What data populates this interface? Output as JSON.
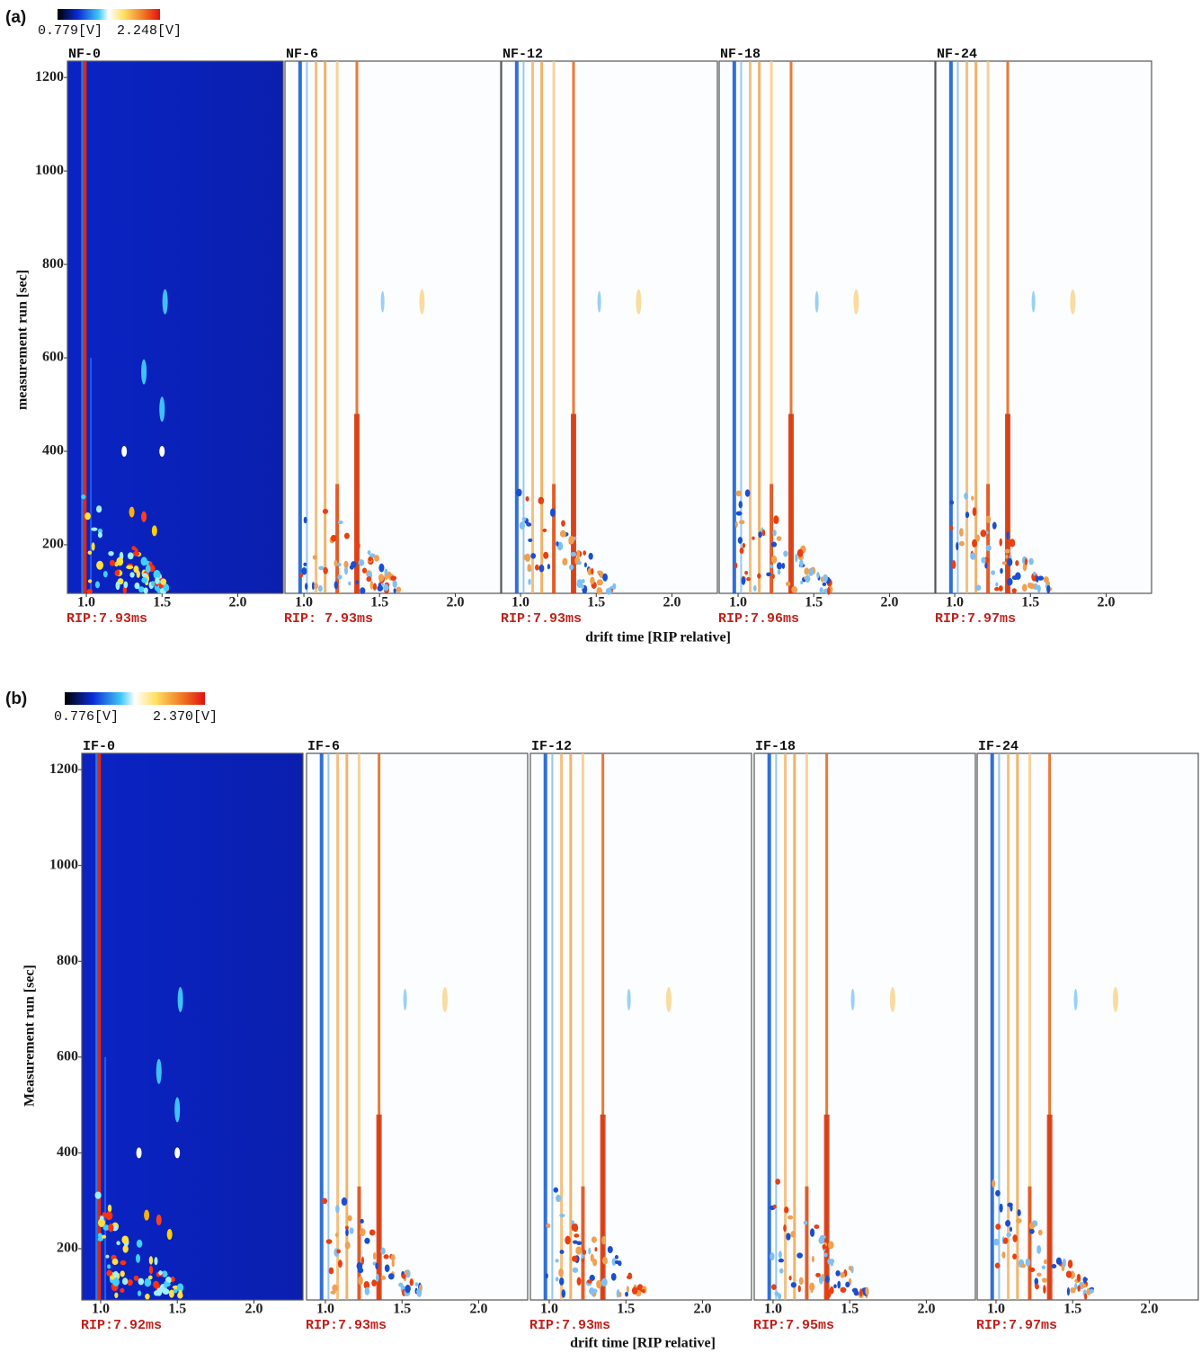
{
  "chart_data": [
    {
      "type": "heatmap",
      "label": "(a)",
      "colorbar": {
        "min_label": "0.779[V]",
        "max_label": "2.248[V]"
      },
      "y_label": "measurement run [sec]",
      "x_label": "drift time [RIP relative]",
      "xlim": [
        0.875,
        2.3
      ],
      "xticks": [
        {
          "value": 1,
          "label": "1.0"
        },
        1.5,
        {
          "value": 2,
          "label": "2.0"
        }
      ],
      "ylim": [
        96,
        1235
      ],
      "yticks": [
        200,
        400,
        600,
        800,
        1000,
        1200
      ],
      "panels": [
        {
          "name": "NF-0",
          "rip": "RIP:7.93ms"
        },
        {
          "name": "NF-6",
          "rip": "RIP: 7.93ms"
        },
        {
          "name": "NF-12",
          "rip": "RIP:7.93ms"
        },
        {
          "name": "NF-18",
          "rip": "RIP:7.96ms"
        },
        {
          "name": "NF-24",
          "rip": "RIP:7.97ms"
        }
      ]
    },
    {
      "type": "heatmap",
      "label": "(b)",
      "colorbar": {
        "min_label": "0.776[V]",
        "max_label": "2.370[V]"
      },
      "y_label": "Measurement run [sec]",
      "x_label": "drift time [RIP relative]",
      "xlim": [
        0.877,
        2.32
      ],
      "xticks": [
        {
          "value": 1,
          "label": "1.0"
        },
        1.5,
        {
          "value": 2,
          "label": "2.0"
        }
      ],
      "ylim": [
        93,
        1234
      ],
      "yticks": [
        200,
        400,
        600,
        800,
        1000,
        1200
      ],
      "panels": [
        {
          "name": "IF-0",
          "rip": "RIP:7.92ms"
        },
        {
          "name": "IF-6",
          "rip": "RIP:7.93ms"
        },
        {
          "name": "IF-12",
          "rip": "RIP:7.93ms"
        },
        {
          "name": "IF-18",
          "rip": "RIP:7.95ms"
        },
        {
          "name": "IF-24",
          "rip": "RIP:7.97ms"
        }
      ]
    }
  ]
}
